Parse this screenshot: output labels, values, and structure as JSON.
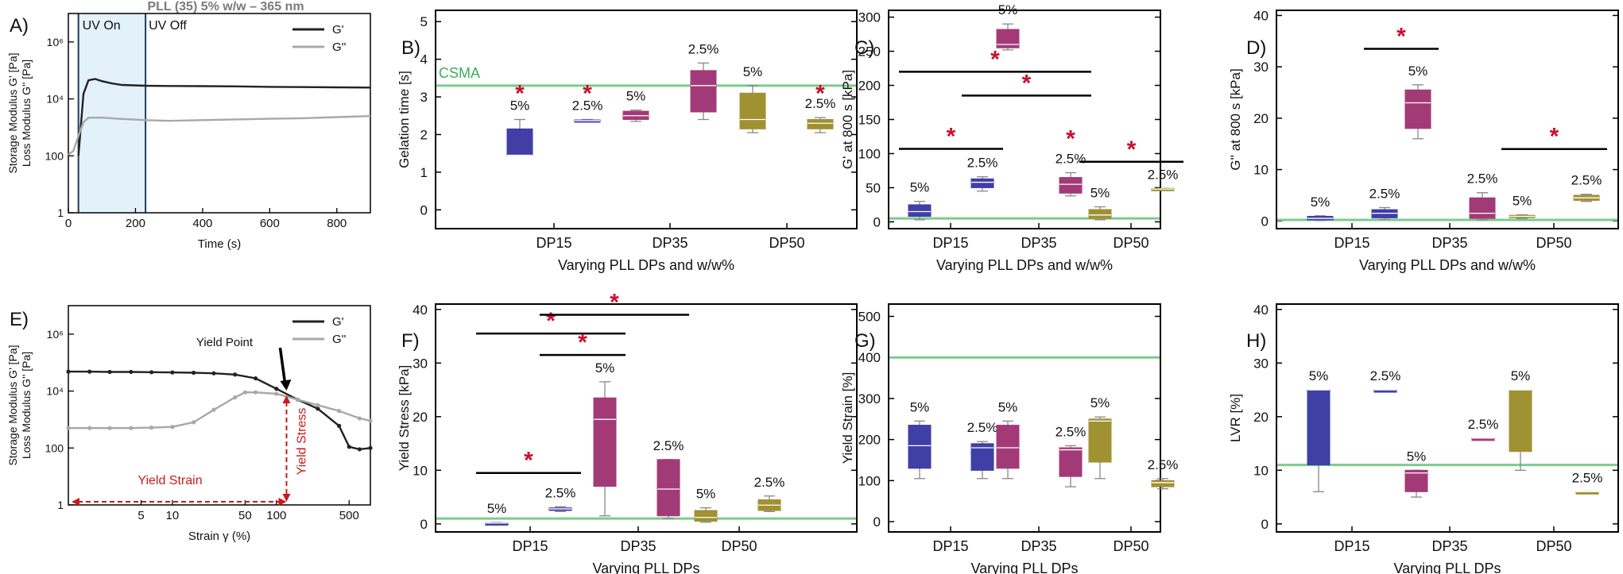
{
  "colors": {
    "blue": "#3f3fa6",
    "magenta": "#a33a78",
    "olive": "#a09132",
    "green_ref": "#7ccc8e",
    "star_red": "#c8102e",
    "uv_fill": "#e3f1fb",
    "gprime": "#222222",
    "gdouble": "#a8a8a8",
    "annot_red": "#cc1a1a"
  },
  "chart_data": [
    {
      "panel": "A)",
      "type": "line",
      "title": "PLL (35) 5% w/w – 365 nm",
      "xlabel": "Time (s)",
      "ylabel_top": "Storage Modulus G' [Pa]",
      "ylabel_bottom": "Loss Modulus G'' [Pa]",
      "xlim": [
        0,
        900
      ],
      "xticks": [
        0,
        200,
        400,
        600,
        800
      ],
      "ylim_log10": [
        0,
        7
      ],
      "yticks": [
        "1",
        "100",
        "10⁴",
        "10⁶"
      ],
      "yticks_log10": [
        0,
        2,
        4,
        6
      ],
      "scale_y": "log",
      "uv_on_s": 30,
      "uv_off_s": 230,
      "annotations": [
        "UV On",
        "UV Off"
      ],
      "legend": [
        "G'",
        "G''"
      ],
      "legend_position": "top-right",
      "series": [
        {
          "name": "G'",
          "x": [
            0,
            30,
            45,
            60,
            80,
            100,
            130,
            160,
            230,
            300,
            400,
            500,
            600,
            700,
            800,
            900
          ],
          "y": [
            null,
            100,
            15000,
            45000,
            50000,
            42000,
            35000,
            31000,
            29000,
            28500,
            28000,
            27500,
            26500,
            26000,
            25500,
            25000
          ]
        },
        {
          "name": "G''",
          "x": [
            0,
            15,
            30,
            45,
            60,
            100,
            150,
            230,
            300,
            400,
            500,
            600,
            700,
            800,
            900
          ],
          "y": [
            110,
            150,
            500,
            1500,
            2200,
            2200,
            2000,
            1800,
            1700,
            1800,
            1900,
            2000,
            2100,
            2300,
            2500
          ]
        }
      ]
    },
    {
      "panel": "B)",
      "type": "box",
      "xlabel": "Varying PLL DPs and w/w%",
      "ylabel": "Gelation time [s]",
      "ylim": [
        -0.5,
        5.3
      ],
      "yticks": [
        0,
        1,
        2,
        3,
        4,
        5
      ],
      "categories": [
        "DP15",
        "DP35",
        "DP50"
      ],
      "reference": {
        "label": "CSMA",
        "value": 3.3
      },
      "boxes": [
        {
          "group": "DP15",
          "label": "5%",
          "color": "blue",
          "min": 1.45,
          "q1": 1.45,
          "median": 1.45,
          "q3": 2.15,
          "max": 2.4
        },
        {
          "group": "DP15",
          "label": "2.5%",
          "color": "blue",
          "min": 2.37,
          "q1": 2.37,
          "median": 2.37,
          "q3": 2.39,
          "max": 2.4
        },
        {
          "group": "DP35",
          "label": "5%",
          "color": "magenta",
          "min": 2.35,
          "q1": 2.4,
          "median": 2.5,
          "q3": 2.62,
          "max": 2.65
        },
        {
          "group": "DP35",
          "label": "2.5%",
          "color": "magenta",
          "min": 2.4,
          "q1": 2.6,
          "median": 3.3,
          "q3": 3.7,
          "max": 3.9
        },
        {
          "group": "DP50",
          "label": "5%",
          "color": "olive",
          "min": 2.05,
          "q1": 2.15,
          "median": 2.4,
          "q3": 3.1,
          "max": 3.3
        },
        {
          "group": "DP50",
          "label": "2.5%",
          "color": "olive",
          "min": 2.05,
          "q1": 2.15,
          "median": 2.3,
          "q3": 2.4,
          "max": 2.45
        }
      ],
      "significance": [
        {
          "at": "DP15-5%",
          "y": 3.05
        },
        {
          "at": "DP15-2.5%",
          "y": 3.05
        },
        {
          "at": "DP50-2.5%",
          "y": 3.05
        }
      ]
    },
    {
      "panel": "C)",
      "type": "box",
      "xlabel": "Varying PLL DPs and w/w%",
      "ylabel": "G' at 800 s [kPa]",
      "ylim": [
        -10,
        310
      ],
      "yticks": [
        0,
        50,
        100,
        150,
        200,
        250,
        300
      ],
      "categories": [
        "DP15",
        "DP35",
        "DP50"
      ],
      "reference": {
        "label": "",
        "value": 5
      },
      "boxes": [
        {
          "group": "DP15",
          "label": "5%",
          "color": "blue",
          "min": 3,
          "q1": 8,
          "median": 15,
          "q3": 25,
          "max": 30
        },
        {
          "group": "DP15",
          "label": "2.5%",
          "color": "blue",
          "min": 45,
          "q1": 50,
          "median": 58,
          "q3": 63,
          "max": 66
        },
        {
          "group": "DP35",
          "label": "5%",
          "color": "magenta",
          "min": 252,
          "q1": 255,
          "median": 260,
          "q3": 282,
          "max": 290
        },
        {
          "group": "DP35",
          "label": "2.5%",
          "color": "magenta",
          "min": 38,
          "q1": 42,
          "median": 55,
          "q3": 65,
          "max": 72
        },
        {
          "group": "DP50",
          "label": "5%",
          "color": "olive",
          "min": 3,
          "q1": 5,
          "median": 10,
          "q3": 18,
          "max": 22
        },
        {
          "group": "DP50",
          "label": "2.5%",
          "color": "olive",
          "min": 47,
          "q1": 47,
          "median": 48,
          "q3": 49,
          "max": 49
        }
      ],
      "significance_bars": [
        {
          "from": "DP15-5%",
          "to": "DP15-2.5%",
          "y": 107
        },
        {
          "from": "DP15-5%",
          "to": "DP35-2.5%",
          "y": 220
        },
        {
          "from": "DP15-2.5%",
          "to": "DP35-2.5%",
          "y": 185
        },
        {
          "from": "DP50-5%",
          "to": "DP50-2.5%",
          "y": 88
        }
      ],
      "significance": [
        {
          "at": "DP35-2.5%",
          "y": 120
        }
      ]
    },
    {
      "panel": "D)",
      "type": "box",
      "xlabel": "Varying PLL DPs and w/w%",
      "ylabel": "G'' at 800 s [kPa]",
      "ylim": [
        -1.5,
        41
      ],
      "yticks": [
        0,
        10,
        20,
        30,
        40
      ],
      "categories": [
        "DP15",
        "DP35",
        "DP50"
      ],
      "reference": {
        "label": "",
        "value": 0.2
      },
      "boxes": [
        {
          "group": "DP15",
          "label": "5%",
          "color": "blue",
          "min": 0.1,
          "q1": 0.2,
          "median": 0.5,
          "q3": 0.9,
          "max": 1.0
        },
        {
          "group": "DP15",
          "label": "2.5%",
          "color": "blue",
          "min": 0.3,
          "q1": 0.6,
          "median": 1.5,
          "q3": 2.2,
          "max": 2.6
        },
        {
          "group": "DP35",
          "label": "5%",
          "color": "magenta",
          "min": 16,
          "q1": 18,
          "median": 23,
          "q3": 25.5,
          "max": 26.5
        },
        {
          "group": "DP35",
          "label": "2.5%",
          "color": "magenta",
          "min": 0.2,
          "q1": 0.5,
          "median": 1.5,
          "q3": 4.5,
          "max": 5.5
        },
        {
          "group": "DP50",
          "label": "5%",
          "color": "olive",
          "min": 0.5,
          "q1": 0.7,
          "median": 0.9,
          "q3": 1.1,
          "max": 1.2
        },
        {
          "group": "DP50",
          "label": "2.5%",
          "color": "olive",
          "min": 3.8,
          "q1": 4.0,
          "median": 4.5,
          "q3": 5.0,
          "max": 5.2
        }
      ],
      "significance_bars": [
        {
          "from": "DP15-2.5%",
          "to": "DP35-5%",
          "y": 33.5
        },
        {
          "from": "DP50-5%",
          "to": "DP50-2.5%",
          "y": 14
        }
      ]
    },
    {
      "panel": "E)",
      "type": "line",
      "xlabel": "Strain γ (%)",
      "ylabel_top": "Storage Modulus G' [Pa]",
      "ylabel_bottom": "Loss Modulus G'' [Pa]",
      "scale_x": "log",
      "scale_y": "log",
      "xlim": [
        1,
        800
      ],
      "xticks": [
        5,
        10,
        50,
        100,
        500
      ],
      "ylim_log10": [
        0,
        7
      ],
      "yticks": [
        "1",
        "100",
        "10⁴",
        "10⁶"
      ],
      "yticks_log10": [
        0,
        2,
        4,
        6
      ],
      "legend": [
        "G'",
        "G''"
      ],
      "legend_position": "top-right",
      "annotations": [
        "Yield Point",
        "Yield Strain",
        "Yield Stress"
      ],
      "yield_point": {
        "x": 125,
        "y": 8000
      },
      "series": [
        {
          "name": "G'",
          "x": [
            1.0,
            1.6,
            2.5,
            4.0,
            6.3,
            10,
            16,
            25,
            40,
            63,
            100,
            160,
            250,
            400,
            500,
            630,
            800
          ],
          "y": [
            48000,
            48000,
            47000,
            47000,
            46000,
            45000,
            44000,
            42000,
            38000,
            28000,
            12000,
            5000,
            2400,
            600,
            110,
            90,
            100
          ]
        },
        {
          "name": "G''",
          "x": [
            1.0,
            1.6,
            2.5,
            4.0,
            6.3,
            10,
            16,
            25,
            40,
            50,
            63,
            100,
            160,
            250,
            400,
            630,
            800
          ],
          "y": [
            500,
            500,
            500,
            500,
            520,
            550,
            800,
            2200,
            6000,
            9000,
            9000,
            8000,
            5000,
            3200,
            2000,
            1100,
            900
          ]
        }
      ]
    },
    {
      "panel": "F)",
      "type": "box",
      "xlabel": "Varying PLL DPs",
      "ylabel": "Yield Stress [kPa]",
      "ylim": [
        -1.5,
        41
      ],
      "yticks": [
        0,
        10,
        20,
        30,
        40
      ],
      "categories": [
        "DP15",
        "DP35",
        "DP50"
      ],
      "reference": {
        "label": "",
        "value": 1
      },
      "boxes": [
        {
          "group": "DP15",
          "label": "5%",
          "color": "blue",
          "min": 0.05,
          "q1": 0.1,
          "median": 0.15,
          "q3": 0.2,
          "max": 0.25
        },
        {
          "group": "DP15",
          "label": "2.5%",
          "color": "blue",
          "min": 2.3,
          "q1": 2.5,
          "median": 2.8,
          "q3": 3.0,
          "max": 3.2
        },
        {
          "group": "DP35",
          "label": "5%",
          "color": "magenta",
          "min": 1.5,
          "q1": 7,
          "median": 19.5,
          "q3": 23.5,
          "max": 26.5
        },
        {
          "group": "DP35",
          "label": "2.5%",
          "color": "magenta",
          "min": 1.0,
          "q1": 1.5,
          "median": 6.5,
          "q3": 12,
          "max": 12
        },
        {
          "group": "DP50",
          "label": "5%",
          "color": "olive",
          "min": 0.3,
          "q1": 0.5,
          "median": 1.2,
          "q3": 2.5,
          "max": 3.0
        },
        {
          "group": "DP50",
          "label": "2.5%",
          "color": "olive",
          "min": 2.3,
          "q1": 2.5,
          "median": 3.5,
          "q3": 4.5,
          "max": 5.2
        }
      ],
      "significance_bars": [
        {
          "from": "DP15-5%",
          "to": "DP15-2.5%",
          "y": 9.5
        },
        {
          "from": "DP15-5%",
          "to": "DP35-5%",
          "y": 35.5
        },
        {
          "from": "DP15-2.5%",
          "to": "DP35-5%",
          "y": 31.5
        },
        {
          "from": "DP15-2.5%",
          "to": "DP35-2.5%",
          "y": 39
        }
      ]
    },
    {
      "panel": "G)",
      "type": "box",
      "xlabel": "Varying PLL DPs",
      "ylabel": "Yield Strain [%]",
      "ylim": [
        -25,
        530
      ],
      "yticks": [
        0,
        100,
        200,
        300,
        400,
        500
      ],
      "categories": [
        "DP15",
        "DP35",
        "DP50"
      ],
      "reference": {
        "label": "",
        "value": 400
      },
      "boxes": [
        {
          "group": "DP15",
          "label": "5%",
          "color": "blue",
          "min": 105,
          "q1": 130,
          "median": 185,
          "q3": 235,
          "max": 245
        },
        {
          "group": "DP15",
          "label": "2.5%",
          "color": "blue",
          "min": 105,
          "q1": 125,
          "median": 180,
          "q3": 190,
          "max": 195
        },
        {
          "group": "DP35",
          "label": "5%",
          "color": "magenta",
          "min": 105,
          "q1": 130,
          "median": 180,
          "q3": 235,
          "max": 245
        },
        {
          "group": "DP35",
          "label": "2.5%",
          "color": "magenta",
          "min": 85,
          "q1": 110,
          "median": 175,
          "q3": 180,
          "max": 185
        },
        {
          "group": "DP50",
          "label": "5%",
          "color": "olive",
          "min": 105,
          "q1": 145,
          "median": 245,
          "q3": 250,
          "max": 255
        },
        {
          "group": "DP50",
          "label": "2.5%",
          "color": "olive",
          "min": 80,
          "q1": 85,
          "median": 95,
          "q3": 100,
          "max": 105
        }
      ]
    },
    {
      "panel": "H)",
      "type": "box",
      "xlabel": "Varying PLL DPs",
      "ylabel": "LVR [%]",
      "ylim": [
        -1.5,
        41
      ],
      "yticks": [
        0,
        10,
        20,
        30,
        40
      ],
      "categories": [
        "DP15",
        "DP35",
        "DP50"
      ],
      "reference": {
        "label": "",
        "value": 11
      },
      "boxes": [
        {
          "group": "DP15",
          "label": "5%",
          "color": "blue",
          "min": 6,
          "q1": 11,
          "median": 25,
          "q3": 25,
          "max": 25
        },
        {
          "group": "DP15",
          "label": "2.5%",
          "color": "blue",
          "min": 25,
          "q1": 25,
          "median": 25,
          "q3": 25,
          "max": 25
        },
        {
          "group": "DP35",
          "label": "5%",
          "color": "magenta",
          "min": 5,
          "q1": 6,
          "median": 9.5,
          "q3": 10,
          "max": 10
        },
        {
          "group": "DP35",
          "label": "2.5%",
          "color": "magenta",
          "min": 16,
          "q1": 16,
          "median": 16,
          "q3": 16,
          "max": 16
        },
        {
          "group": "DP50",
          "label": "5%",
          "color": "olive",
          "min": 10,
          "q1": 13.5,
          "median": 25,
          "q3": 25,
          "max": 25
        },
        {
          "group": "DP50",
          "label": "2.5%",
          "color": "olive",
          "min": 6,
          "q1": 6,
          "median": 6,
          "q3": 6,
          "max": 6
        }
      ]
    }
  ]
}
